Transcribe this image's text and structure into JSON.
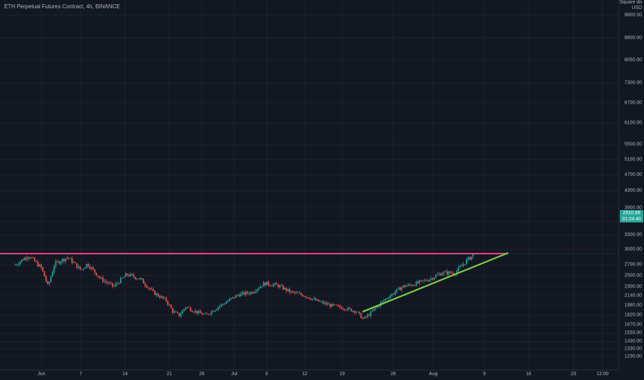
{
  "header": {
    "title": "ETH Perpetual Futures Contract, 4h, BINANCE"
  },
  "price_scale": {
    "mode_label": "Square do",
    "currency": "USD",
    "last_price": "2910.89",
    "countdown": "01:24:40",
    "last_price_color": "#26a69a"
  },
  "colors": {
    "background": "#131722",
    "up_candle": "#26a69a",
    "down_candle": "#ef5350",
    "resistance_line": "#f23e86",
    "trend_line": "#7cd04a"
  },
  "chart_data": {
    "type": "candlestick",
    "symbol": "ETH Perpetual Futures Contract",
    "interval": "4h",
    "exchange": "BINANCE",
    "y_scale": "square-root",
    "y_ticks": [
      9600,
      8800,
      8050,
      7300,
      6700,
      6100,
      5500,
      5100,
      4700,
      4300,
      3900,
      3600,
      3300,
      3000,
      2700,
      2500,
      2300,
      2140,
      1980,
      1820,
      1670,
      1550,
      1430,
      1330,
      1230
    ],
    "y_tick_labels": [
      "9600.00",
      "8800.00",
      "8050.00",
      "7300.00",
      "6700.00",
      "6100.00",
      "5500.00",
      "5100.00",
      "4700.00",
      "4300.00",
      "3900.00",
      "3600.00",
      "3300.00",
      "3000.00",
      "2700.00",
      "2500.00",
      "2300.00",
      "2140.00",
      "1980.00",
      "1820.00",
      "1670.00",
      "1550.00",
      "1430.00",
      "1330.00",
      "1230.00"
    ],
    "x_tick_labels": [
      "Jun",
      "7",
      "14",
      "21",
      "26",
      "Jul",
      "6",
      "12",
      "19",
      "26",
      "Aug",
      "9",
      "16",
      "23",
      "12:00"
    ],
    "price_path": [
      [
        "2021-05-28",
        2700
      ],
      [
        "2021-05-30",
        2880
      ],
      [
        "2021-06-01",
        2640
      ],
      [
        "2021-06-02",
        2300
      ],
      [
        "2021-06-03",
        2720
      ],
      [
        "2021-06-05",
        2850
      ],
      [
        "2021-06-07",
        2600
      ],
      [
        "2021-06-08",
        2720
      ],
      [
        "2021-06-10",
        2440
      ],
      [
        "2021-06-12",
        2300
      ],
      [
        "2021-06-14",
        2520
      ],
      [
        "2021-06-16",
        2440
      ],
      [
        "2021-06-18",
        2200
      ],
      [
        "2021-06-20",
        2060
      ],
      [
        "2021-06-21",
        1880
      ],
      [
        "2021-06-22",
        1820
      ],
      [
        "2021-06-23",
        1960
      ],
      [
        "2021-06-24",
        1900
      ],
      [
        "2021-06-26",
        1820
      ],
      [
        "2021-06-28",
        1960
      ],
      [
        "2021-07-01",
        2160
      ],
      [
        "2021-07-03",
        2200
      ],
      [
        "2021-07-05",
        2360
      ],
      [
        "2021-07-07",
        2320
      ],
      [
        "2021-07-09",
        2200
      ],
      [
        "2021-07-11",
        2150
      ],
      [
        "2021-07-13",
        2050
      ],
      [
        "2021-07-15",
        1980
      ],
      [
        "2021-07-17",
        1940
      ],
      [
        "2021-07-19",
        1880
      ],
      [
        "2021-07-20",
        1760
      ],
      [
        "2021-07-21",
        1840
      ],
      [
        "2021-07-23",
        2050
      ],
      [
        "2021-07-26",
        2300
      ],
      [
        "2021-07-28",
        2350
      ],
      [
        "2021-07-30",
        2430
      ],
      [
        "2021-08-01",
        2550
      ],
      [
        "2021-08-03",
        2550
      ],
      [
        "2021-08-04",
        2680
      ],
      [
        "2021-08-05",
        2810
      ],
      [
        "2021-08-06",
        2911
      ]
    ],
    "lines": [
      {
        "name": "resistance",
        "from": [
          "2021-05-28",
          2920
        ],
        "to": [
          "2021-08-11",
          2920
        ]
      },
      {
        "name": "trendline",
        "from": [
          "2021-07-20",
          1880
        ],
        "to": [
          "2021-08-11",
          2930
        ]
      }
    ],
    "last_price": 2910.89
  }
}
